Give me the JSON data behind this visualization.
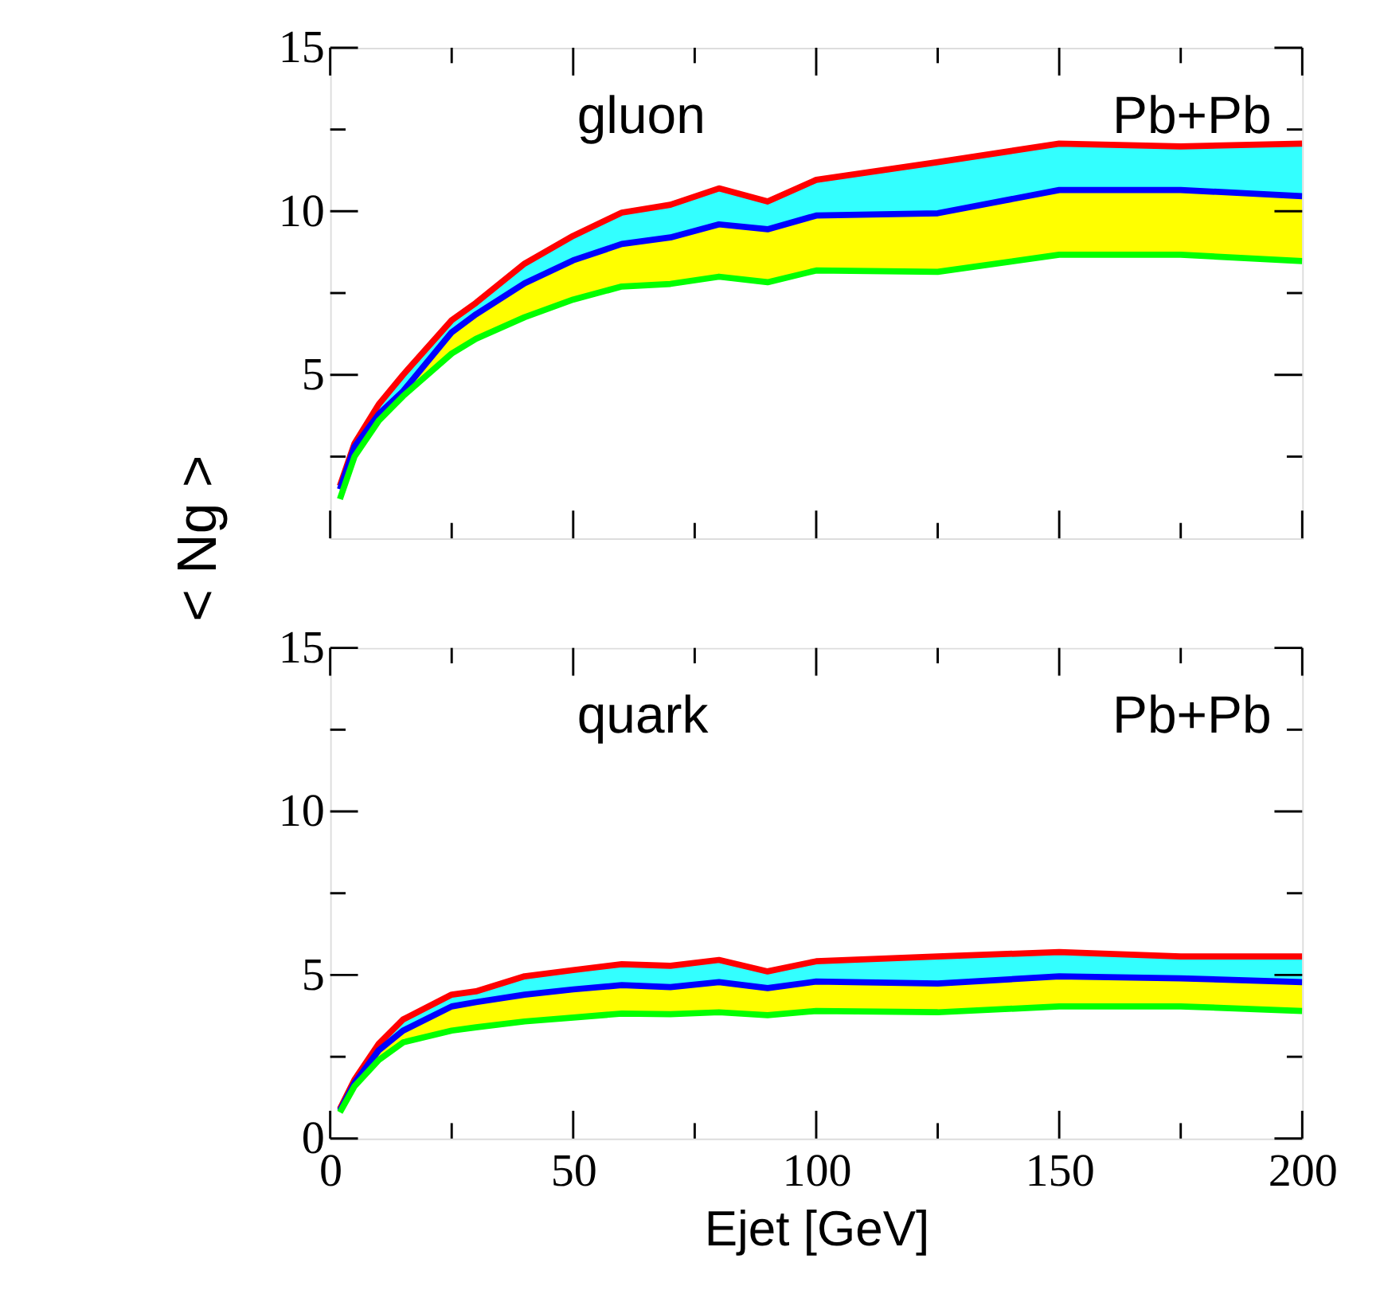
{
  "chart_data": [
    {
      "type": "line",
      "ylabel": "< Ng >",
      "annotations": [
        "gluon",
        "Pb+Pb"
      ],
      "xlim": [
        0,
        200
      ],
      "ylim": [
        0,
        15
      ],
      "xticks": [
        {
          "value": 0,
          "label": null
        },
        {
          "value": 25,
          "label": null
        },
        {
          "value": 50,
          "label": null
        },
        {
          "value": 75,
          "label": null
        },
        {
          "value": 100,
          "label": null
        },
        {
          "value": 125,
          "label": null
        },
        {
          "value": 150,
          "label": null
        },
        {
          "value": 175,
          "label": null
        },
        {
          "value": 200,
          "label": null
        }
      ],
      "yticks": [
        {
          "value": 2.5,
          "label": null
        },
        5,
        {
          "value": 7.5,
          "label": null
        },
        10,
        {
          "value": 12.5,
          "label": null
        },
        15
      ],
      "tick_labels": "y",
      "grid": false,
      "legend": false,
      "x": [
        2,
        5,
        10,
        15,
        25,
        30,
        40,
        50,
        60,
        70,
        80,
        90,
        100,
        125,
        150,
        175,
        200
      ],
      "series": [
        {
          "color": "#ff0000",
          "values": [
            1.6,
            2.9,
            4.1,
            5.0,
            6.67,
            7.2,
            8.4,
            9.25,
            9.96,
            10.2,
            10.7,
            10.3,
            10.96,
            11.5,
            12.07,
            11.98,
            12.07
          ],
          "lower": [
            1.5,
            2.8,
            3.8,
            4.5,
            6.3,
            6.85,
            7.8,
            8.5,
            9.0,
            9.2,
            9.6,
            9.45,
            9.87,
            9.94,
            10.65,
            10.65,
            10.46
          ],
          "upper": [
            1.6,
            2.9,
            4.1,
            5.0,
            6.67,
            7.2,
            8.4,
            9.25,
            9.96,
            10.2,
            10.7,
            10.3,
            10.96,
            11.5,
            12.07,
            11.98,
            12.07
          ]
        },
        {
          "color": "#0000ff",
          "values": [
            1.5,
            2.8,
            3.8,
            4.5,
            6.3,
            6.85,
            7.8,
            8.5,
            9.0,
            9.2,
            9.6,
            9.45,
            9.87,
            9.94,
            10.65,
            10.65,
            10.46
          ]
        },
        {
          "color": "#00ff00",
          "values": [
            1.2,
            2.5,
            3.6,
            4.35,
            5.65,
            6.1,
            6.76,
            7.3,
            7.7,
            7.78,
            8.0,
            7.83,
            8.19,
            8.15,
            8.67,
            8.67,
            8.48
          ],
          "lower": [
            1.2,
            2.5,
            3.6,
            4.35,
            5.65,
            6.1,
            6.76,
            7.3,
            7.7,
            7.78,
            8.0,
            7.83,
            8.19,
            8.15,
            8.67,
            8.67,
            8.48
          ],
          "upper": [
            1.5,
            2.8,
            3.8,
            4.5,
            6.3,
            6.85,
            7.8,
            8.5,
            9.0,
            9.2,
            9.6,
            9.45,
            9.87,
            9.94,
            10.65,
            10.65,
            10.46
          ]
        }
      ]
    },
    {
      "type": "line",
      "xlabel": "Ejet [GeV]",
      "annotations": [
        "quark",
        "Pb+Pb"
      ],
      "xlim": [
        0,
        200
      ],
      "ylim": [
        0,
        15
      ],
      "xticks": [
        0,
        {
          "value": 25,
          "label": null
        },
        50,
        {
          "value": 75,
          "label": null
        },
        100,
        {
          "value": 125,
          "label": null
        },
        150,
        {
          "value": 175,
          "label": null
        },
        200
      ],
      "yticks": [
        0,
        {
          "value": 2.5,
          "label": null
        },
        5,
        {
          "value": 7.5,
          "label": null
        },
        10,
        {
          "value": 12.5,
          "label": null
        },
        15
      ],
      "grid": false,
      "legend": false,
      "x": [
        2,
        5,
        10,
        15,
        25,
        30,
        40,
        50,
        60,
        70,
        80,
        90,
        100,
        125,
        150,
        175,
        200
      ],
      "series": [
        {
          "color": "#ff0000",
          "values": [
            0.9,
            1.8,
            2.9,
            3.64,
            4.4,
            4.5,
            4.96,
            5.15,
            5.33,
            5.28,
            5.46,
            5.11,
            5.42,
            5.57,
            5.7,
            5.57,
            5.57
          ],
          "lower": [
            0.85,
            1.7,
            2.7,
            3.3,
            4.04,
            4.17,
            4.4,
            4.56,
            4.69,
            4.63,
            4.78,
            4.6,
            4.8,
            4.74,
            4.96,
            4.9,
            4.78
          ],
          "upper": [
            0.9,
            1.8,
            2.9,
            3.64,
            4.4,
            4.5,
            4.96,
            5.15,
            5.33,
            5.28,
            5.46,
            5.11,
            5.42,
            5.57,
            5.7,
            5.57,
            5.57
          ]
        },
        {
          "color": "#0000ff",
          "values": [
            0.85,
            1.7,
            2.7,
            3.3,
            4.04,
            4.17,
            4.4,
            4.56,
            4.69,
            4.63,
            4.78,
            4.6,
            4.8,
            4.74,
            4.96,
            4.9,
            4.78
          ]
        },
        {
          "color": "#00ff00",
          "values": [
            0.8,
            1.6,
            2.4,
            2.94,
            3.3,
            3.4,
            3.58,
            3.7,
            3.82,
            3.8,
            3.86,
            3.77,
            3.9,
            3.86,
            4.04,
            4.04,
            3.9
          ],
          "lower": [
            0.8,
            1.6,
            2.4,
            2.94,
            3.3,
            3.4,
            3.58,
            3.7,
            3.82,
            3.8,
            3.86,
            3.77,
            3.9,
            3.86,
            4.04,
            4.04,
            3.9
          ],
          "upper": [
            0.85,
            1.7,
            2.7,
            3.3,
            4.04,
            4.17,
            4.4,
            4.56,
            4.69,
            4.63,
            4.78,
            4.6,
            4.8,
            4.74,
            4.96,
            4.9,
            4.78
          ]
        }
      ]
    }
  ]
}
